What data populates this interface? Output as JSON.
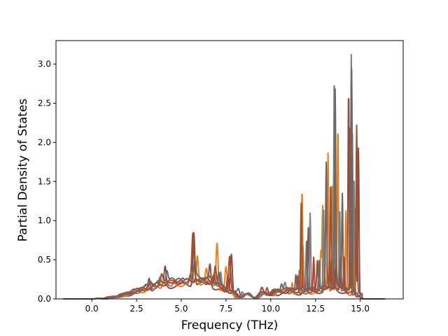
{
  "chart_data": {
    "type": "line",
    "xlabel": "Frequency (THz)",
    "ylabel": "Partial Density of States",
    "xlim": [
      -2.0,
      17.4
    ],
    "ylim": [
      0.0,
      3.3
    ],
    "xticks": [
      0.0,
      2.5,
      5.0,
      7.5,
      10.0,
      12.5,
      15.0
    ],
    "xtick_labels": [
      "0.0",
      "2.5",
      "5.0",
      "7.5",
      "10.0",
      "12.5",
      "15.0"
    ],
    "yticks": [
      0.0,
      0.5,
      1.0,
      1.5,
      2.0,
      2.5,
      3.0
    ],
    "ytick_labels": [
      "0.0",
      "0.5",
      "1.0",
      "1.5",
      "2.0",
      "2.5",
      "3.0"
    ],
    "grid": false,
    "legend": "none",
    "x_range_plotted": [
      -1.6,
      16.4
    ],
    "series": [
      {
        "color": "#8c4a4a",
        "peaks": [
          [
            3.2,
            0.32
          ],
          [
            4.1,
            0.45
          ],
          [
            4.9,
            0.22
          ],
          [
            5.7,
            0.92
          ],
          [
            6.6,
            0.5
          ],
          [
            7.8,
            0.6
          ],
          [
            10.2,
            0.15
          ],
          [
            11.8,
            0.7
          ],
          [
            12.1,
            0.9
          ],
          [
            13.0,
            0.35
          ],
          [
            13.6,
            0.4
          ],
          [
            14.35,
            2.68
          ],
          [
            14.55,
            2.2
          ],
          [
            14.75,
            1.2
          ],
          [
            14.9,
            1.95
          ]
        ]
      },
      {
        "color": "#e8801c",
        "peaks": [
          [
            3.5,
            0.15
          ],
          [
            4.0,
            0.28
          ],
          [
            5.6,
            0.35
          ],
          [
            5.9,
            0.6
          ],
          [
            6.4,
            0.4
          ],
          [
            7.0,
            0.76
          ],
          [
            7.5,
            0.4
          ],
          [
            10.4,
            0.15
          ],
          [
            11.2,
            0.25
          ],
          [
            11.75,
            1.38
          ],
          [
            12.8,
            0.6
          ],
          [
            12.9,
            1.18
          ],
          [
            13.2,
            1.9
          ],
          [
            13.45,
            1.55
          ],
          [
            13.75,
            2.2
          ],
          [
            14.2,
            1.15
          ],
          [
            14.6,
            1.4
          ]
        ]
      },
      {
        "color": "#7f7f7f",
        "peaks": [
          [
            3.0,
            0.15
          ],
          [
            3.8,
            0.28
          ],
          [
            4.6,
            0.26
          ],
          [
            5.5,
            0.35
          ],
          [
            6.2,
            0.3
          ],
          [
            7.2,
            0.38
          ],
          [
            8.4,
            0.1
          ],
          [
            10.8,
            0.22
          ],
          [
            11.6,
            0.35
          ],
          [
            12.2,
            1.1
          ],
          [
            12.95,
            1.22
          ],
          [
            13.55,
            2.85
          ],
          [
            13.85,
            1.2
          ],
          [
            14.5,
            3.12
          ],
          [
            14.65,
            1.6
          ]
        ]
      },
      {
        "color": "#c0392b",
        "peaks": [
          [
            4.3,
            0.22
          ],
          [
            5.8,
            0.28
          ],
          [
            6.8,
            0.3
          ],
          [
            7.6,
            0.3
          ],
          [
            9.5,
            0.12
          ],
          [
            11.5,
            0.3
          ],
          [
            12.4,
            0.55
          ],
          [
            13.3,
            0.55
          ],
          [
            13.65,
            0.5
          ],
          [
            14.1,
            0.55
          ]
        ]
      },
      {
        "color": "#a0522d",
        "peaks": [
          [
            3.9,
            0.3
          ],
          [
            4.4,
            0.22
          ],
          [
            5.65,
            0.8
          ],
          [
            6.9,
            0.42
          ],
          [
            7.7,
            0.55
          ],
          [
            9.8,
            0.16
          ],
          [
            11.7,
            1.2
          ],
          [
            12.6,
            0.45
          ],
          [
            13.35,
            1.45
          ],
          [
            13.9,
            0.55
          ],
          [
            14.45,
            2.3
          ],
          [
            14.8,
            2.2
          ]
        ]
      },
      {
        "color": "#696969",
        "peaks": [
          [
            3.3,
            0.22
          ],
          [
            4.2,
            0.35
          ],
          [
            5.2,
            0.18
          ],
          [
            5.75,
            0.45
          ],
          [
            6.5,
            0.25
          ],
          [
            7.1,
            0.32
          ],
          [
            8.2,
            0.12
          ],
          [
            10.6,
            0.2
          ],
          [
            11.4,
            0.3
          ],
          [
            12.0,
            0.75
          ],
          [
            12.7,
            0.5
          ],
          [
            13.1,
            1.7
          ],
          [
            13.6,
            2.65
          ],
          [
            14.0,
            1.35
          ],
          [
            14.52,
            2.9
          ]
        ]
      }
    ]
  }
}
